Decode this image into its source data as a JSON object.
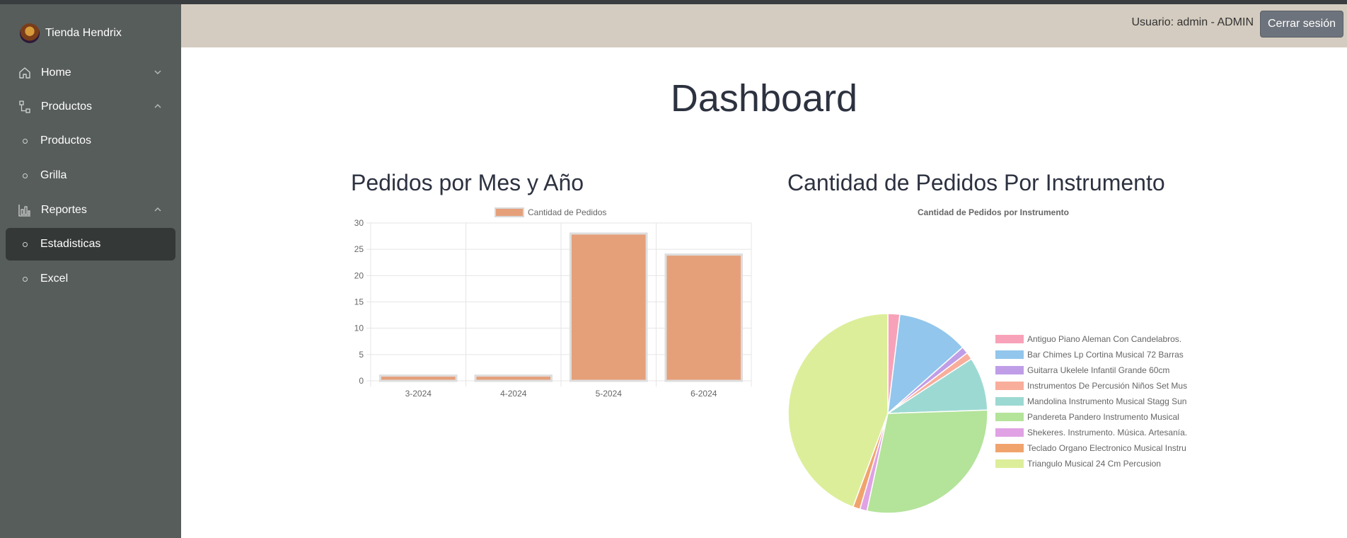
{
  "sidebar": {
    "brand": "Tienda Hendrix",
    "items": [
      {
        "label": "Home",
        "icon": "home-icon"
      },
      {
        "label": "Productos",
        "icon": "flow-icon"
      },
      {
        "label": "Productos",
        "icon": "circle-icon"
      },
      {
        "label": "Grilla",
        "icon": "circle-icon"
      },
      {
        "label": "Reportes",
        "icon": "bar-chart-icon"
      },
      {
        "label": "Estadisticas",
        "icon": "circle-icon",
        "active": true
      },
      {
        "label": "Excel",
        "icon": "circle-icon"
      }
    ]
  },
  "header": {
    "user_text": "Usuario: admin - ADMIN",
    "logout_label": "Cerrar sesión"
  },
  "main": {
    "title": "Dashboard",
    "bar_section_title": "Pedidos por Mes y Año",
    "pie_section_title": "Cantidad de Pedidos Por Instrumento"
  },
  "colors": {
    "sidebar_bg": "#575d5b",
    "active_item_bg": "#343837",
    "header_bg": "#d4ccc0",
    "bar_fill": "#e5a07a"
  },
  "chart_data": [
    {
      "type": "bar",
      "legend": [
        "Cantidad de Pedidos"
      ],
      "categories": [
        "3-2024",
        "4-2024",
        "5-2024",
        "6-2024"
      ],
      "series": [
        {
          "name": "Cantidad de Pedidos",
          "values": [
            1,
            1,
            28,
            24
          ]
        }
      ],
      "yticks": [
        "0",
        "5",
        "10",
        "15",
        "20",
        "25",
        "30"
      ],
      "ylim": [
        0,
        30
      ],
      "grid": true,
      "legend_position": "top"
    },
    {
      "type": "pie",
      "title": "Cantidad de Pedidos por Instrumento",
      "legend_position": "right",
      "labels": [
        "Antiguo Piano Aleman Con Candelabros.",
        "Bar Chimes Lp Cortina Musical 72 Barras",
        "Guitarra Ukelele Infantil Grande 60cm",
        "Instrumentos De Percusión Niños Set Mus",
        "Mandolina Instrumento Musical Stagg Sun",
        "Pandereta Pandero Instrumento Musical",
        "Shekeres. Instrumento. Música. Artesanía.",
        "Teclado Organo Electronico Musical Instru",
        "Triangulo Musical 24 Cm Percusion"
      ],
      "values": [
        1,
        6,
        0.6,
        0.6,
        4.5,
        15,
        0.6,
        0.6,
        23
      ],
      "colors": [
        "#f7a2b8",
        "#92c6ec",
        "#bf9ee7",
        "#f9ad9b",
        "#9dd9d3",
        "#b4e39a",
        "#e0a2e4",
        "#f1a36d",
        "#dcee9a"
      ]
    }
  ]
}
